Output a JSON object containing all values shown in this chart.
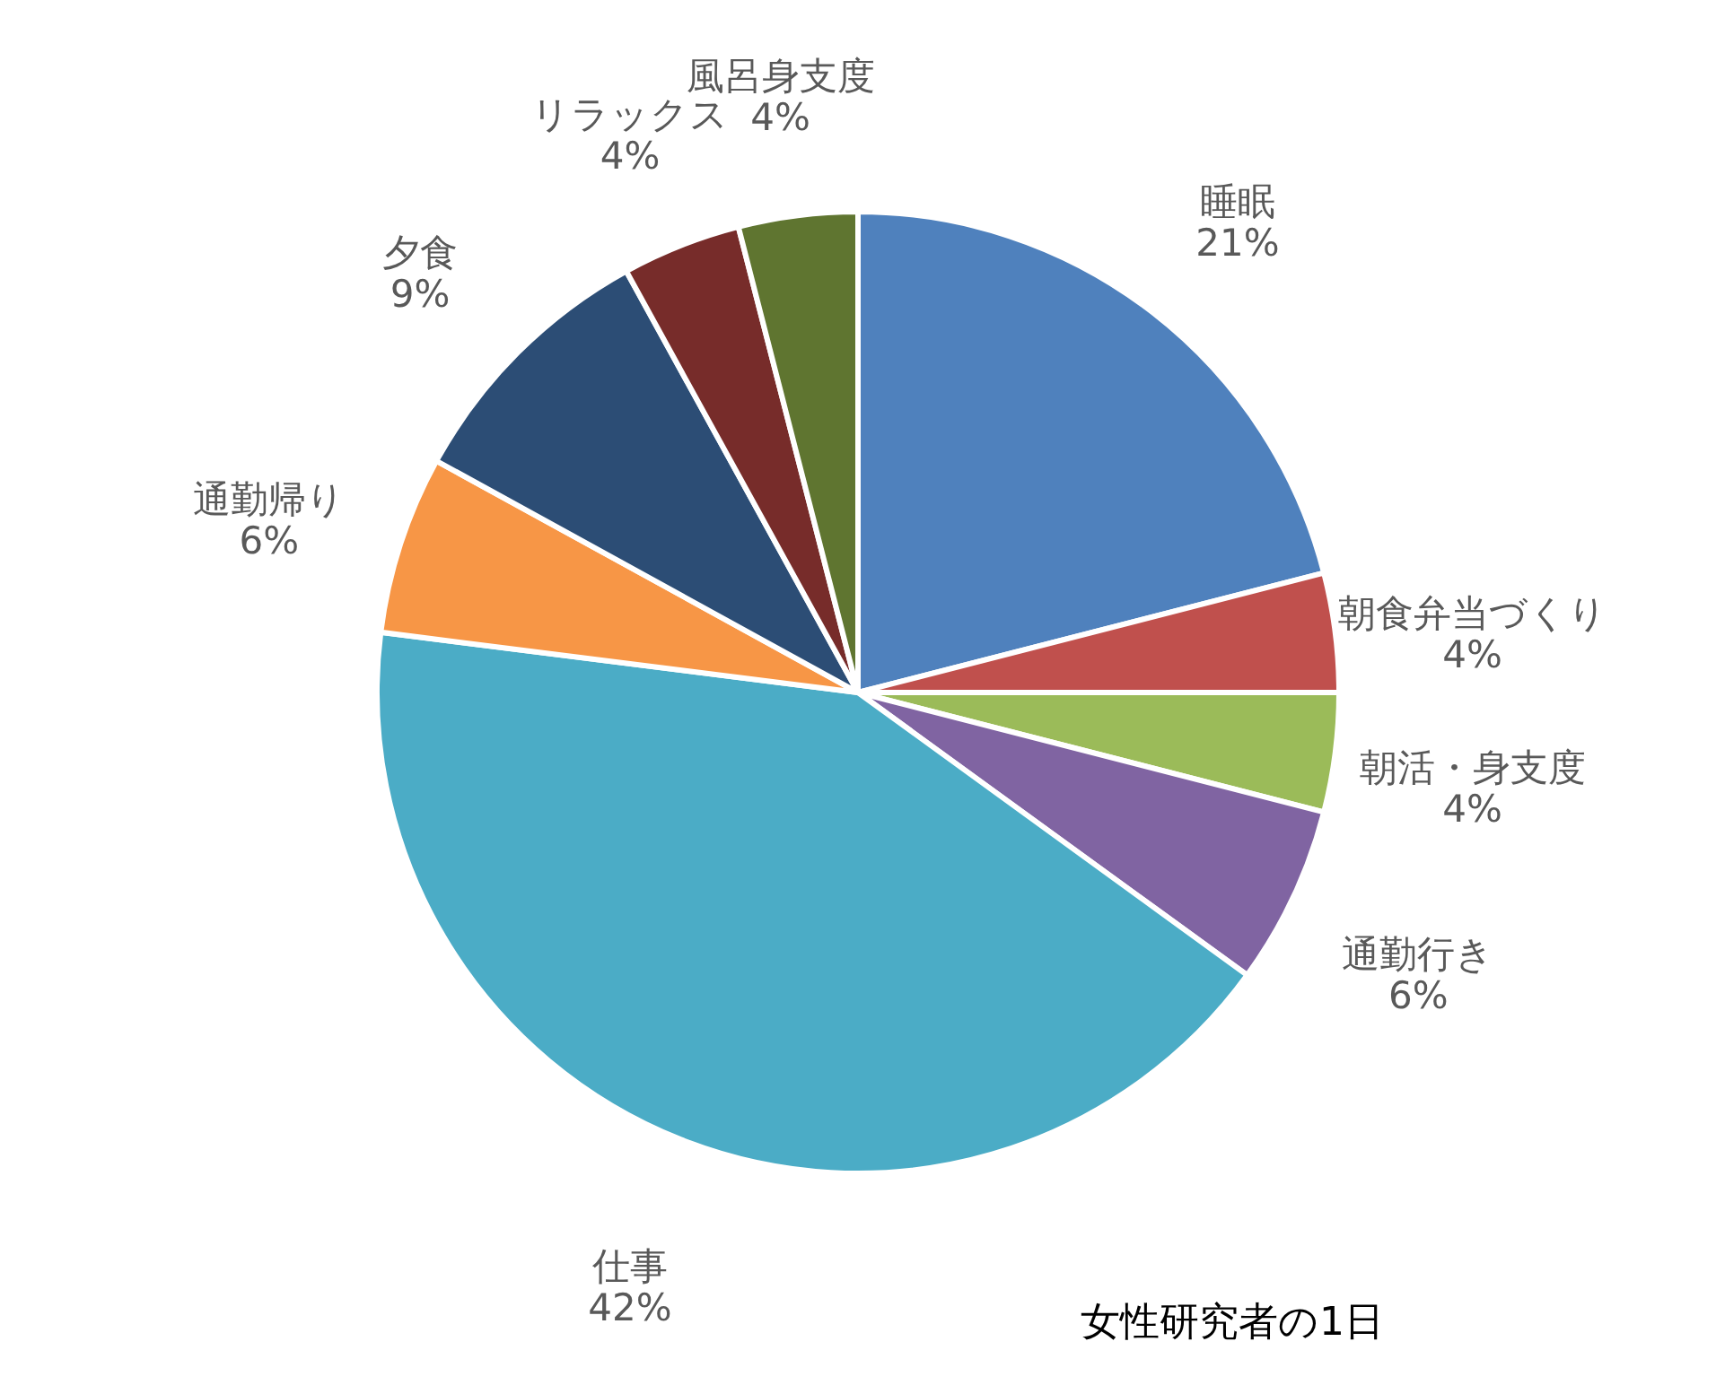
{
  "chart_data": {
    "type": "pie",
    "title": "女性研究者の1日",
    "categories": [
      "睡眠",
      "朝食弁当づくり",
      "朝活・身支度",
      "通勤行き",
      "仕事",
      "通勤帰り",
      "夕食",
      "リラックス",
      "風呂身支度"
    ],
    "values": [
      21,
      4,
      4,
      6,
      42,
      6,
      9,
      4,
      4
    ],
    "value_labels": [
      "21%",
      "4%",
      "4%",
      "6%",
      "42%",
      "6%",
      "9%",
      "4%",
      "4%"
    ],
    "colors": [
      "#4f81bd",
      "#c0504d",
      "#9bbb59",
      "#8064a2",
      "#4bacc6",
      "#f79646",
      "#2c4d75",
      "#772c2a",
      "#5f7530"
    ],
    "legend": false
  }
}
